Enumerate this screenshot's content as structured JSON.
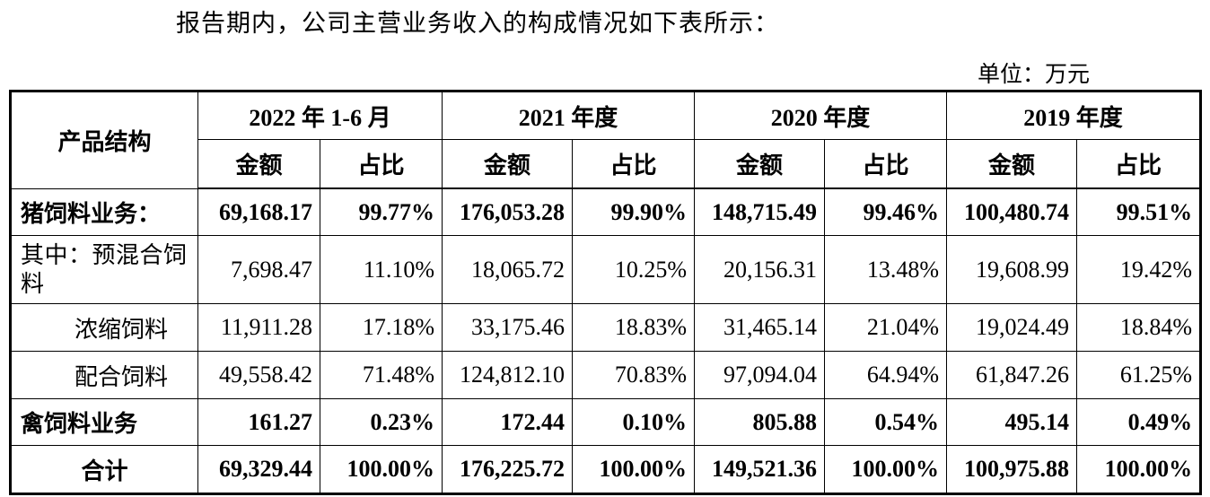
{
  "intro_text": "报告期内，公司主营业务收入的构成情况如下表所示：",
  "unit_text": "单位：万元",
  "table": {
    "row_header": "产品结构",
    "periods": [
      "2022 年 1-6 月",
      "2021 年度",
      "2020 年度",
      "2019 年度"
    ],
    "sub_headers": {
      "amount": "金额",
      "ratio": "占比"
    },
    "rows": [
      {
        "label": "猪饲料业务：",
        "bold": true,
        "cells": [
          "69,168.17",
          "99.77%",
          "176,053.28",
          "99.90%",
          "148,715.49",
          "99.46%",
          "100,480.74",
          "99.51%"
        ]
      },
      {
        "label": "其中：预混合饲料",
        "bold": false,
        "cells": [
          "7,698.47",
          "11.10%",
          "18,065.72",
          "10.25%",
          "20,156.31",
          "13.48%",
          "19,608.99",
          "19.42%"
        ]
      },
      {
        "label": "浓缩饲料",
        "bold": false,
        "cells": [
          "11,911.28",
          "17.18%",
          "33,175.46",
          "18.83%",
          "31,465.14",
          "21.04%",
          "19,024.49",
          "18.84%"
        ]
      },
      {
        "label": "配合饲料",
        "bold": false,
        "cells": [
          "49,558.42",
          "71.48%",
          "124,812.10",
          "70.83%",
          "97,094.04",
          "64.94%",
          "61,847.26",
          "61.25%"
        ]
      },
      {
        "label": "禽饲料业务",
        "bold": true,
        "cells": [
          "161.27",
          "0.23%",
          "172.44",
          "0.10%",
          "805.88",
          "0.54%",
          "495.14",
          "0.49%"
        ]
      },
      {
        "label": "合计",
        "bold": true,
        "cells": [
          "69,329.44",
          "100.00%",
          "176,225.72",
          "100.00%",
          "149,521.36",
          "100.00%",
          "100,975.88",
          "100.00%"
        ]
      }
    ]
  }
}
